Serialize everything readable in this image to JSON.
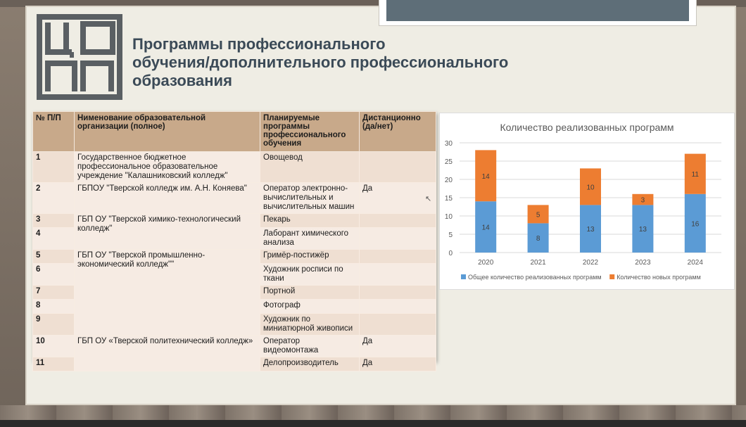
{
  "logo": {
    "name": "ЦОПП"
  },
  "title": {
    "line1": "Программы профессионального",
    "line2": "обучения/дополнительного профессионального",
    "line3": "образования"
  },
  "table": {
    "headers": [
      "№ П/П",
      "Нименование образовательной организации (полное)",
      "Планируемые программы профессионального обучения",
      "Дистанционно (да/нет)"
    ],
    "rows": [
      {
        "n": "1",
        "program": "Овощевод",
        "remote": ""
      },
      {
        "n": "2",
        "program": "Оператор электронно-вычислительных и вычислительных машин",
        "remote": "Да"
      },
      {
        "n": "3",
        "program": "Пекарь",
        "remote": ""
      },
      {
        "n": "4",
        "program": "Лаборант химического анализа",
        "remote": ""
      },
      {
        "n": "5",
        "program": "Гримёр-постижёр",
        "remote": ""
      },
      {
        "n": "6",
        "program": "Художник росписи по ткани",
        "remote": ""
      },
      {
        "n": "7",
        "program": "Портной",
        "remote": ""
      },
      {
        "n": "8",
        "program": "Фотограф",
        "remote": ""
      },
      {
        "n": "9",
        "program": "Художник по миниатюрной живописи",
        "remote": ""
      },
      {
        "n": "10",
        "program": "Оператор видеомонтажа",
        "remote": "Да"
      },
      {
        "n": "11",
        "program": "Делопроизводитель",
        "remote": "Да"
      }
    ],
    "orgs": [
      "Государственное бюджетное профессиональное образовательное учреждение \"Калашниковский колледж\"",
      "ГБПОУ \"Тверской колледж им. А.Н. Коняева\"",
      "ГБП ОУ \"Тверской химико-технологический колледж\"",
      "ГБП ОУ \"Тверской промышленно-экономический колледж\"\"",
      "ГБП ОУ «Тверской политехнический колледж»"
    ]
  },
  "chart_data": {
    "type": "bar",
    "stacked": true,
    "title": "Количество реализованных программ",
    "categories": [
      "2020",
      "2021",
      "2022",
      "2023",
      "2024"
    ],
    "series": [
      {
        "name": "Общее количество реализованных программ",
        "values": [
          14,
          8,
          13,
          13,
          16
        ],
        "color": "#5b9bd5"
      },
      {
        "name": "Количество новых программ",
        "values": [
          14,
          5,
          10,
          3,
          11
        ],
        "color": "#ed7d31"
      }
    ],
    "ylim": [
      0,
      30
    ],
    "yticks": [
      "0",
      "5",
      "10",
      "15",
      "20",
      "25",
      "30"
    ],
    "grid": true,
    "legend": "bottom"
  }
}
